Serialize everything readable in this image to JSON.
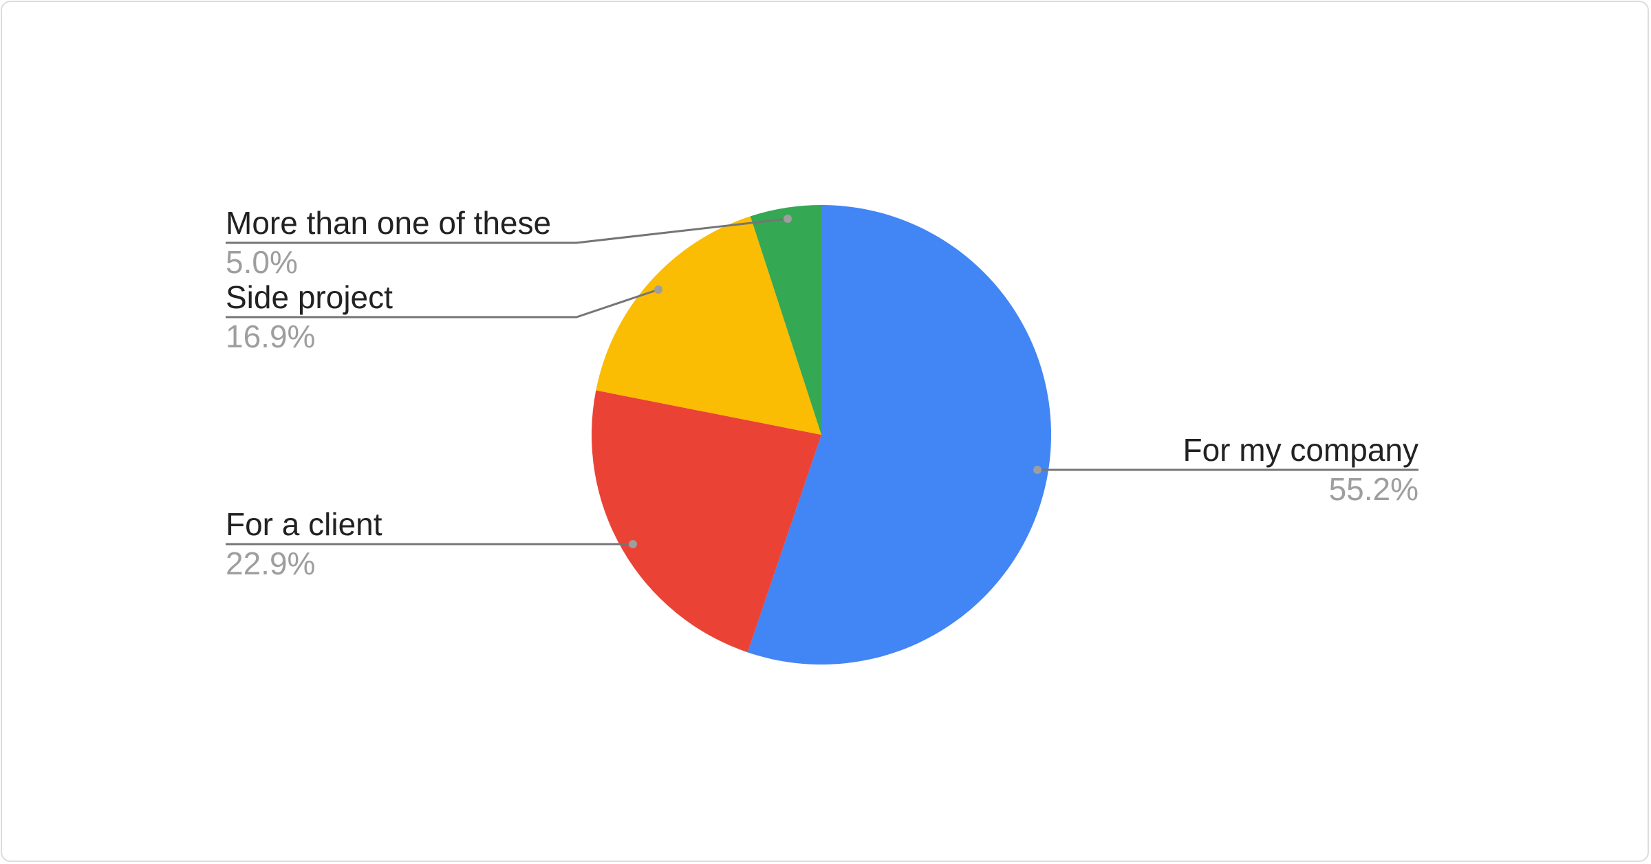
{
  "chart_data": {
    "type": "pie",
    "title": "",
    "categories": [
      "For my company",
      "For a client",
      "Side project",
      "More than one of these"
    ],
    "values": [
      55.2,
      22.9,
      16.9,
      5.0
    ],
    "labels": [
      "55.2%",
      "22.9%",
      "16.9%",
      "5.0%"
    ],
    "colors": [
      "#4285f4",
      "#ea4335",
      "#fbbc04",
      "#34a853"
    ],
    "start_angle": "top, clockwise",
    "legend": "labeled slices"
  }
}
